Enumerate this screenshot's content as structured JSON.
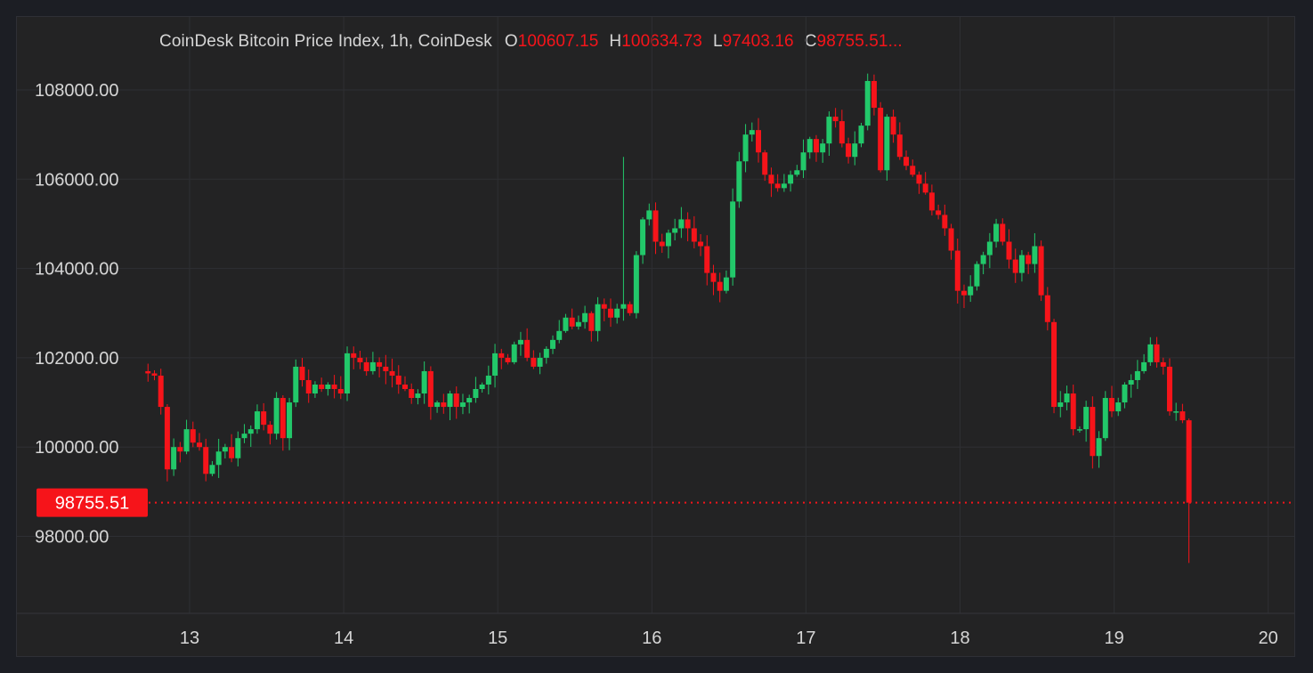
{
  "legend": {
    "title": "CoinDesk Bitcoin Price Index, 1h, CoinDesk",
    "open_key": "O",
    "open_value": "100607.15",
    "high_key": "H",
    "high_value": "100634.73",
    "low_key": "L",
    "low_value": "97403.16",
    "close_key": "C",
    "close_value": "98755.51..."
  },
  "colors": {
    "up": "#22c86a",
    "down": "#f6141a",
    "grid": "#2e2f33",
    "text": "#d6d6d6",
    "background": "#232324"
  },
  "current_price": {
    "label": "98755.51",
    "value": 98755.51
  },
  "chart_data": {
    "type": "candlestick",
    "title": "CoinDesk Bitcoin Price Index, 1h, CoinDesk",
    "interval": "1h",
    "y_ticks": [
      98000,
      100000,
      102000,
      104000,
      106000,
      108000
    ],
    "y_tick_labels": [
      "98000.00",
      "100000.00",
      "102000.00",
      "104000.00",
      "106000.00",
      "108000.00"
    ],
    "x_ticks": [
      13,
      14,
      15,
      16,
      17,
      18,
      19,
      20
    ],
    "x_tick_labels": [
      "13",
      "14",
      "15",
      "16",
      "17",
      "18",
      "19",
      "20"
    ],
    "x_start": 12.73,
    "candle_step_days": 0.0417,
    "closes": [
      101650,
      101600,
      100900,
      99500,
      100000,
      99900,
      100400,
      100100,
      100000,
      99400,
      99600,
      99900,
      100000,
      99750,
      100200,
      100300,
      100400,
      100800,
      100500,
      100300,
      101100,
      100200,
      101000,
      101800,
      101500,
      101200,
      101400,
      101300,
      101400,
      101300,
      101200,
      102100,
      102000,
      101900,
      101700,
      101900,
      101800,
      101700,
      101600,
      101400,
      101300,
      101100,
      101200,
      101700,
      100900,
      101000,
      100900,
      101200,
      100900,
      101000,
      101100,
      101300,
      101400,
      101600,
      102100,
      102000,
      101900,
      102300,
      102400,
      102000,
      101800,
      102000,
      102200,
      102400,
      102600,
      102900,
      102700,
      102800,
      103000,
      102600,
      103200,
      103100,
      102900,
      103100,
      103200,
      103000,
      104300,
      105100,
      105300,
      104600,
      104500,
      104800,
      104900,
      105100,
      104900,
      104600,
      104500,
      103900,
      103700,
      103500,
      103800,
      105500,
      106400,
      107000,
      107100,
      106600,
      106100,
      105900,
      105800,
      105900,
      106100,
      106200,
      106600,
      106900,
      106600,
      106800,
      107400,
      107300,
      106800,
      106500,
      106800,
      107200,
      108200,
      107600,
      106200,
      107400,
      107000,
      106500,
      106300,
      106100,
      105900,
      105700,
      105300,
      105200,
      104900,
      104400,
      103500,
      103400,
      103600,
      104100,
      104300,
      104600,
      105000,
      104600,
      104200,
      103900,
      104300,
      104100,
      104500,
      103400,
      102800,
      100900,
      101000,
      101200,
      100400,
      100400,
      100900,
      99800,
      100200,
      101100,
      100800,
      101000,
      101400,
      101500,
      101700,
      101900,
      102300,
      101900,
      101800,
      100800,
      100800,
      100600,
      98755.51
    ]
  }
}
